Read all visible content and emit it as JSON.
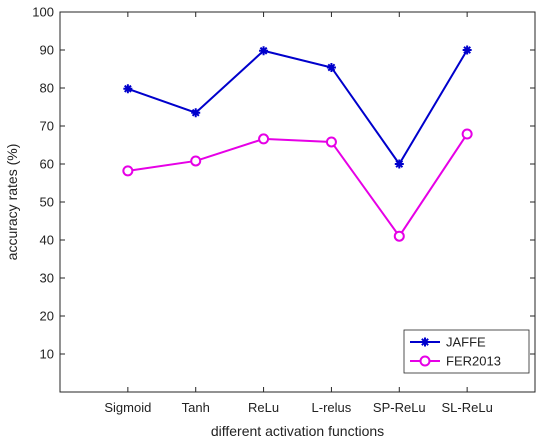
{
  "chart_data": {
    "type": "line",
    "title": "",
    "xlabel": "different activation functions",
    "ylabel": "accuracy rates (%)",
    "categories": [
      "Sigmoid",
      "Tanh",
      "ReLu",
      "L-relus",
      "SP-ReLu",
      "SL-ReLu"
    ],
    "ylim": [
      0,
      100
    ],
    "yticks": [
      10,
      20,
      30,
      40,
      50,
      60,
      70,
      80,
      90,
      100
    ],
    "grid": false,
    "legend_position": "bottom-right",
    "series": [
      {
        "name": "JAFFE",
        "values": [
          79.8,
          73.5,
          89.8,
          85.4,
          60.0,
          90.0
        ],
        "color": "#0000cc",
        "marker": "star"
      },
      {
        "name": "FER2013",
        "values": [
          58.2,
          60.8,
          66.6,
          65.8,
          41.0,
          67.9
        ],
        "color": "#e600e6",
        "marker": "circle"
      }
    ]
  }
}
